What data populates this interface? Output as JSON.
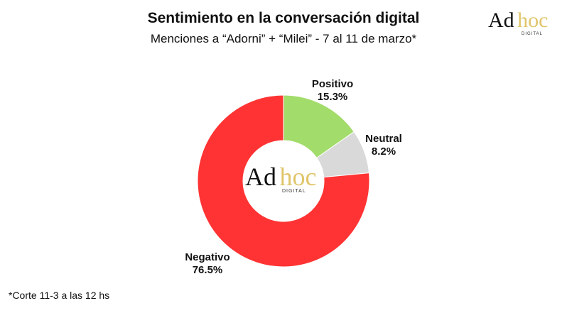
{
  "title": "Sentimiento en la conversación digital",
  "subtitle": "Menciones a “Adorni” + “Milei” - 7 al 11 de marzo*",
  "logo": {
    "ad": "Ad",
    "hoc": "hoc",
    "digital": "DIGITAL"
  },
  "footnote": "*Corte 11-3 a las 12 hs",
  "chart_data": {
    "type": "pie",
    "donut": true,
    "title": "Sentimiento en la conversación digital",
    "subtitle": "Menciones a “Adorni” + “Milei” - 7 al 11 de marzo*",
    "series": [
      {
        "name": "Positivo",
        "value": 15.3,
        "label": "15.3%",
        "color": "#a2dc6a"
      },
      {
        "name": "Neutral",
        "value": 8.2,
        "label": "8.2%",
        "color": "#d9d9d9"
      },
      {
        "name": "Negativo",
        "value": 76.5,
        "label": "76.5%",
        "color": "#ff3333"
      }
    ]
  }
}
